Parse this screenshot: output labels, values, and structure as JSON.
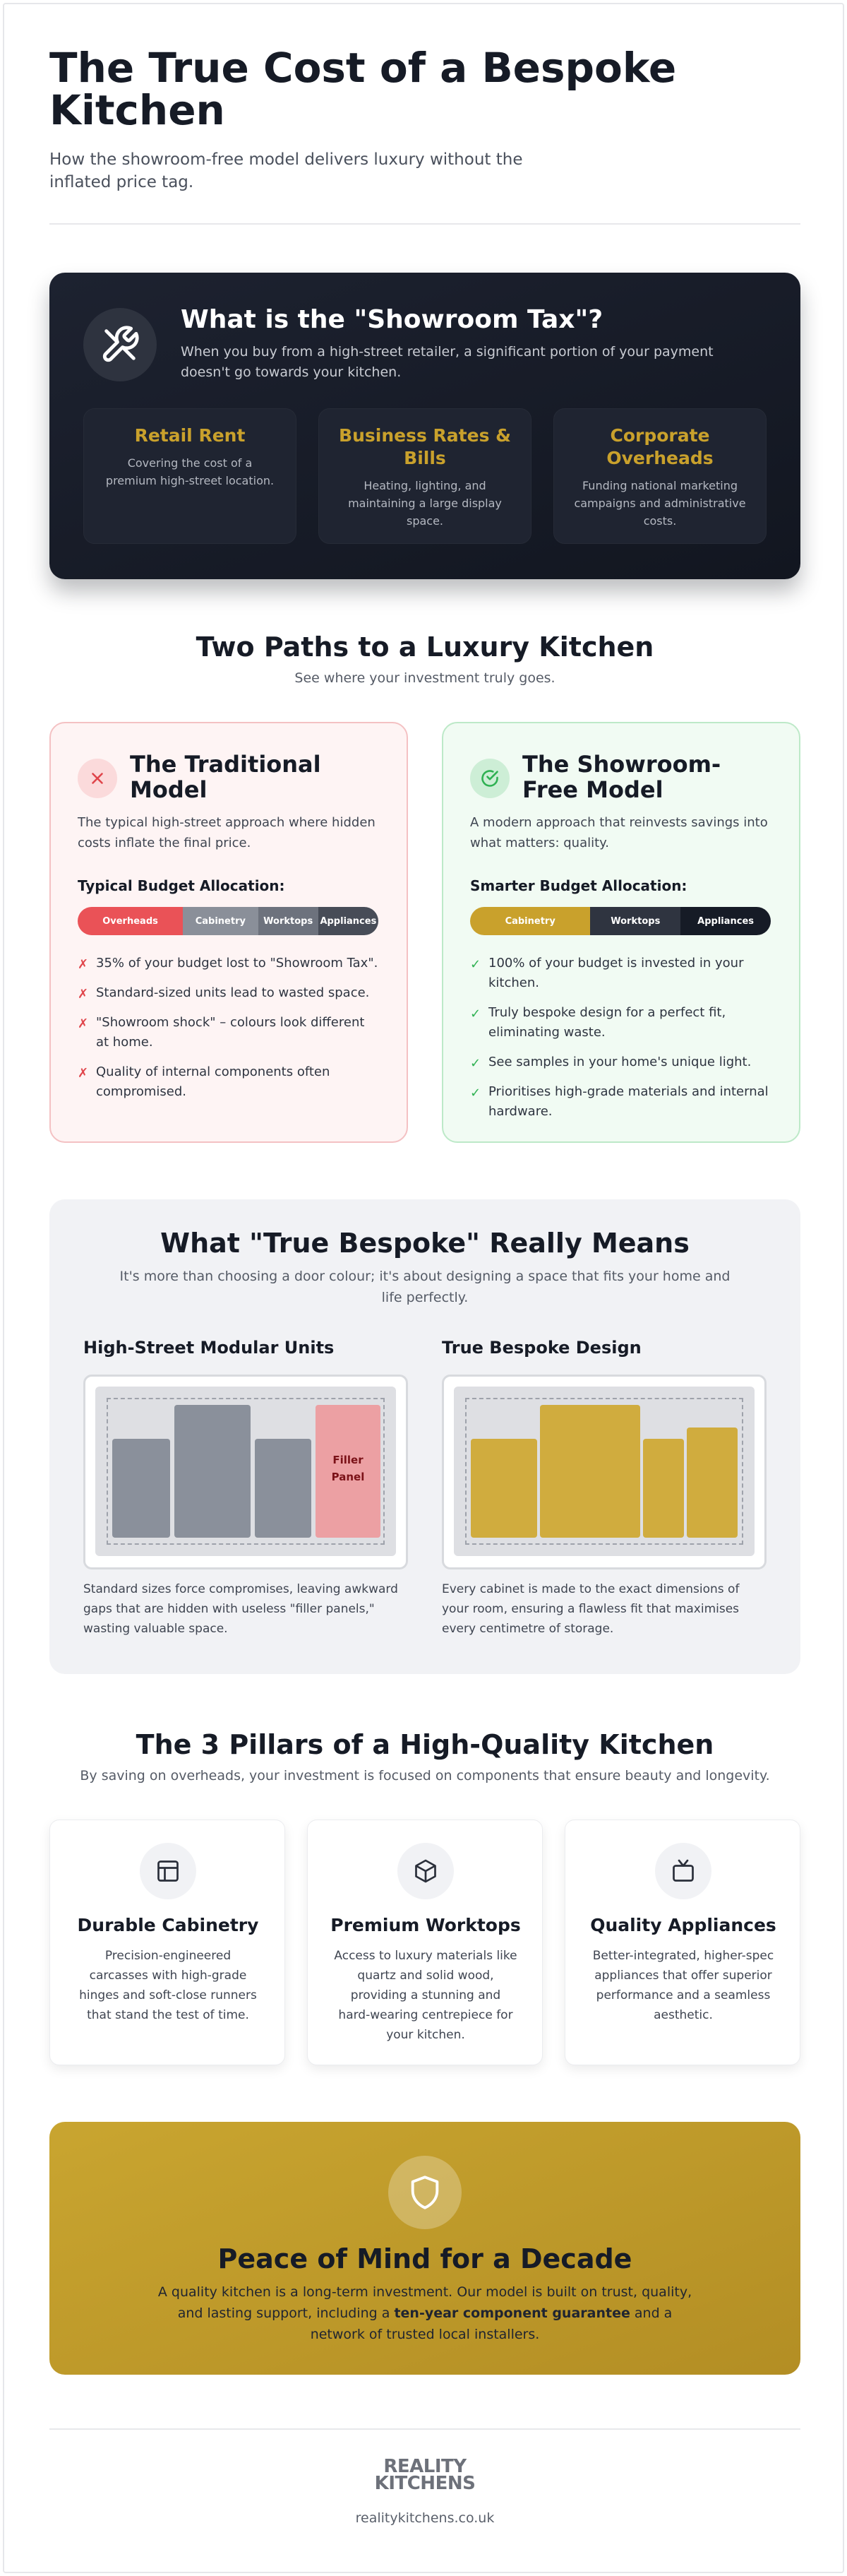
{
  "header": {
    "title": "The True Cost of a Bespoke Kitchen",
    "subtitle": "How the showroom-free model delivers luxury without the inflated price tag."
  },
  "showroom_tax": {
    "icon": "tools-icon",
    "title": "What is the \"Showroom Tax\"?",
    "description": "When you buy from a high-street retailer, a significant portion of your payment doesn't go towards your kitchen.",
    "accent_color": "#c9a12c",
    "items": [
      {
        "title": "Retail Rent",
        "text": "Covering the cost of a premium high-street location."
      },
      {
        "title": "Business Rates & Bills",
        "text": "Heating, lighting, and maintaining a large display space."
      },
      {
        "title": "Corporate Overheads",
        "text": "Funding national marketing campaigns and administrative costs."
      }
    ]
  },
  "two_paths": {
    "title": "Two Paths to a Luxury Kitchen",
    "subtitle": "See where your investment truly goes.",
    "traditional": {
      "icon": "cross-icon",
      "title": "The Traditional Model",
      "description": "The typical high-street approach where hidden costs inflate the final price.",
      "allocation_label": "Typical Budget Allocation:",
      "segments": [
        "Overheads",
        "Cabinetry",
        "Worktops",
        "Appliances"
      ],
      "segment_colors": [
        "#ea5257",
        "#8a8f99",
        "#6d727d",
        "#474c57"
      ],
      "points": [
        "35% of your budget lost to \"Showroom Tax\".",
        "Standard-sized units lead to wasted space.",
        "\"Showroom shock\" – colours look different at home.",
        "Quality of internal components often compromised."
      ],
      "marker": "✗"
    },
    "showroom_free": {
      "icon": "check-circle-icon",
      "title": "The Showroom-Free Model",
      "description": "A modern approach that reinvests savings into what matters: quality.",
      "allocation_label": "Smarter Budget Allocation:",
      "segments": [
        "Cabinetry",
        "Worktops",
        "Appliances"
      ],
      "segment_colors": [
        "#c9a12c",
        "#2f3440",
        "#161b26"
      ],
      "points": [
        "100% of your budget is invested in your kitchen.",
        "Truly bespoke design for a perfect fit, eliminating waste.",
        "See samples in your home's unique light.",
        "Prioritises high-grade materials and internal hardware."
      ],
      "marker": "✓"
    }
  },
  "true_bespoke": {
    "title": "What \"True Bespoke\" Really Means",
    "subtitle": "It's more than choosing a door colour; it's about designing a space that fits your home and life perfectly.",
    "modular": {
      "title": "High-Street Modular Units",
      "filler_label": "Filler Panel",
      "caption": "Standard sizes force compromises, leaving awkward gaps that are hidden with useless \"filler panels,\" wasting valuable space."
    },
    "bespoke": {
      "title": "True Bespoke Design",
      "caption": "Every cabinet is made to the exact dimensions of your room, ensuring a flawless fit that maximises every centimetre of storage."
    }
  },
  "pillars": {
    "title": "The 3 Pillars of a High-Quality Kitchen",
    "subtitle": "By saving on overheads, your investment is focused on components that ensure beauty and longevity.",
    "items": [
      {
        "icon": "cabinet-icon",
        "title": "Durable Cabinetry",
        "text": "Precision-engineered carcasses with high-grade hinges and soft-close runners that stand the test of time."
      },
      {
        "icon": "cube-icon",
        "title": "Premium Worktops",
        "text": "Access to luxury materials like quartz and solid wood, providing a stunning and hard-wearing centrepiece for your kitchen."
      },
      {
        "icon": "tv-icon",
        "title": "Quality Appliances",
        "text": "Better-integrated, higher-spec appliances that offer superior performance and a seamless aesthetic."
      }
    ]
  },
  "peace_of_mind": {
    "icon": "shield-icon",
    "title": "Peace of Mind for a Decade",
    "text_before": "A quality kitchen is a long-term investment. Our model is built on trust, quality, and lasting support, including a ",
    "text_bold": "ten-year component guarantee",
    "text_after": " and a network of trusted local installers."
  },
  "footer": {
    "logo_line1": "REALITY",
    "logo_line2": "KITCHENS",
    "url": "realitykitchens.co.uk"
  }
}
